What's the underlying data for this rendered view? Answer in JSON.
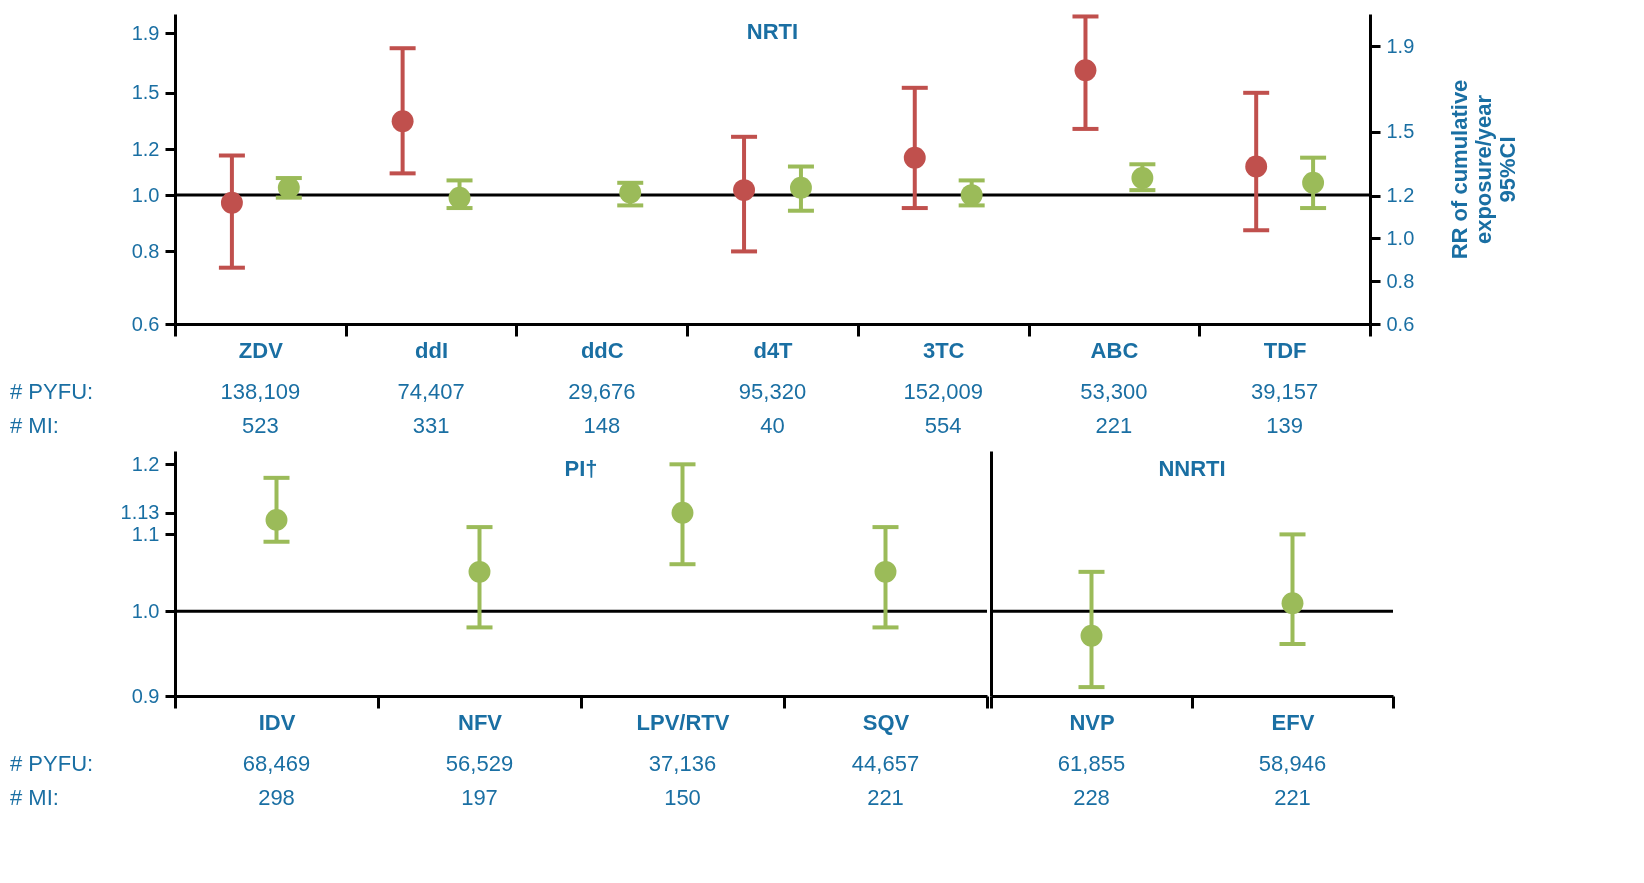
{
  "chart_data": [
    {
      "type": "scatter",
      "title": "NRTI",
      "categories": [
        "ZDV",
        "ddI",
        "ddC",
        "d4T",
        "3TC",
        "ABC",
        "TDF"
      ],
      "log": true,
      "marker": "circle",
      "ylim": [
        0.6,
        2.05
      ],
      "yticks": [
        0.6,
        0.8,
        {
          "value": 1,
          "label": "1.0"
        },
        1.2,
        1.5,
        1.9
      ],
      "y2lim": [
        0.6,
        2.05
      ],
      "y2ticks": [
        0.6,
        0.8,
        {
          "value": 1,
          "label": "1.0"
        },
        1.2,
        1.5,
        1.9
      ],
      "y2label": "RR of cumulative\nexposure/year\n95%CI",
      "series": [
        {
          "color": "#c0504d",
          "values": [
            0.97,
            1.34,
            null,
            1.02,
            1.16,
            1.64,
            1.12
          ],
          "errors": [
            [
              0.75,
              1.17
            ],
            [
              1.09,
              1.79
            ],
            null,
            [
              0.8,
              1.26
            ],
            [
              0.95,
              1.53
            ],
            [
              1.3,
              2.03
            ],
            [
              0.87,
              1.5
            ]
          ]
        },
        {
          "color": "#9bbb59",
          "values": [
            1.03,
            0.99,
            1.01,
            1.03,
            1.0,
            1.07,
            1.05
          ],
          "errors": [
            [
              0.99,
              1.07
            ],
            [
              0.95,
              1.06
            ],
            [
              0.96,
              1.05
            ],
            [
              0.94,
              1.12
            ],
            [
              0.96,
              1.06
            ],
            [
              1.02,
              1.13
            ],
            [
              0.95,
              1.16
            ]
          ]
        }
      ],
      "ref_lines": [
        {
          "axis": "y",
          "value": 1
        }
      ],
      "annotations": [
        "# PYFU:",
        "138,109",
        "74,407",
        "29,676",
        "95,320",
        "152,009",
        "53,300",
        "39,157",
        "# MI:",
        "523",
        "331",
        "148",
        "40",
        "554",
        "221",
        "139"
      ]
    },
    {
      "type": "scatter",
      "title": "PI†",
      "categories": [
        "IDV",
        "NFV",
        "LPV/RTV",
        "SQV"
      ],
      "log": true,
      "marker": "circle",
      "ylim": [
        0.9,
        1.22
      ],
      "yticks": [
        0.9,
        {
          "value": 1,
          "label": "1.0"
        },
        1.1,
        1.13,
        1.2
      ],
      "color": "#9bbb59",
      "values": [
        1.12,
        1.05,
        1.13,
        1.05
      ],
      "errors": [
        [
          1.09,
          1.18
        ],
        [
          0.98,
          1.11
        ],
        [
          1.06,
          1.2
        ],
        [
          0.98,
          1.11
        ]
      ],
      "ref_lines": [
        {
          "axis": "y",
          "value": 1
        }
      ],
      "annotations": [
        "# PYFU:",
        "68,469",
        "56,529",
        "37,136",
        "44,657",
        "# MI:",
        "298",
        "197",
        "150",
        "221"
      ]
    },
    {
      "type": "scatter",
      "title": "NNRTI",
      "categories": [
        "NVP",
        "EFV"
      ],
      "log": true,
      "marker": "circle",
      "tick_labels": "x",
      "ylim": [
        0.9,
        1.22
      ],
      "color": "#9bbb59",
      "values": [
        0.97,
        1.01
      ],
      "errors": [
        [
          0.91,
          1.05
        ],
        [
          0.96,
          1.1
        ]
      ],
      "ref_lines": [
        {
          "axis": "y",
          "value": 1
        }
      ],
      "annotations": [
        "61,855",
        "58,946",
        "228",
        "221"
      ]
    }
  ]
}
